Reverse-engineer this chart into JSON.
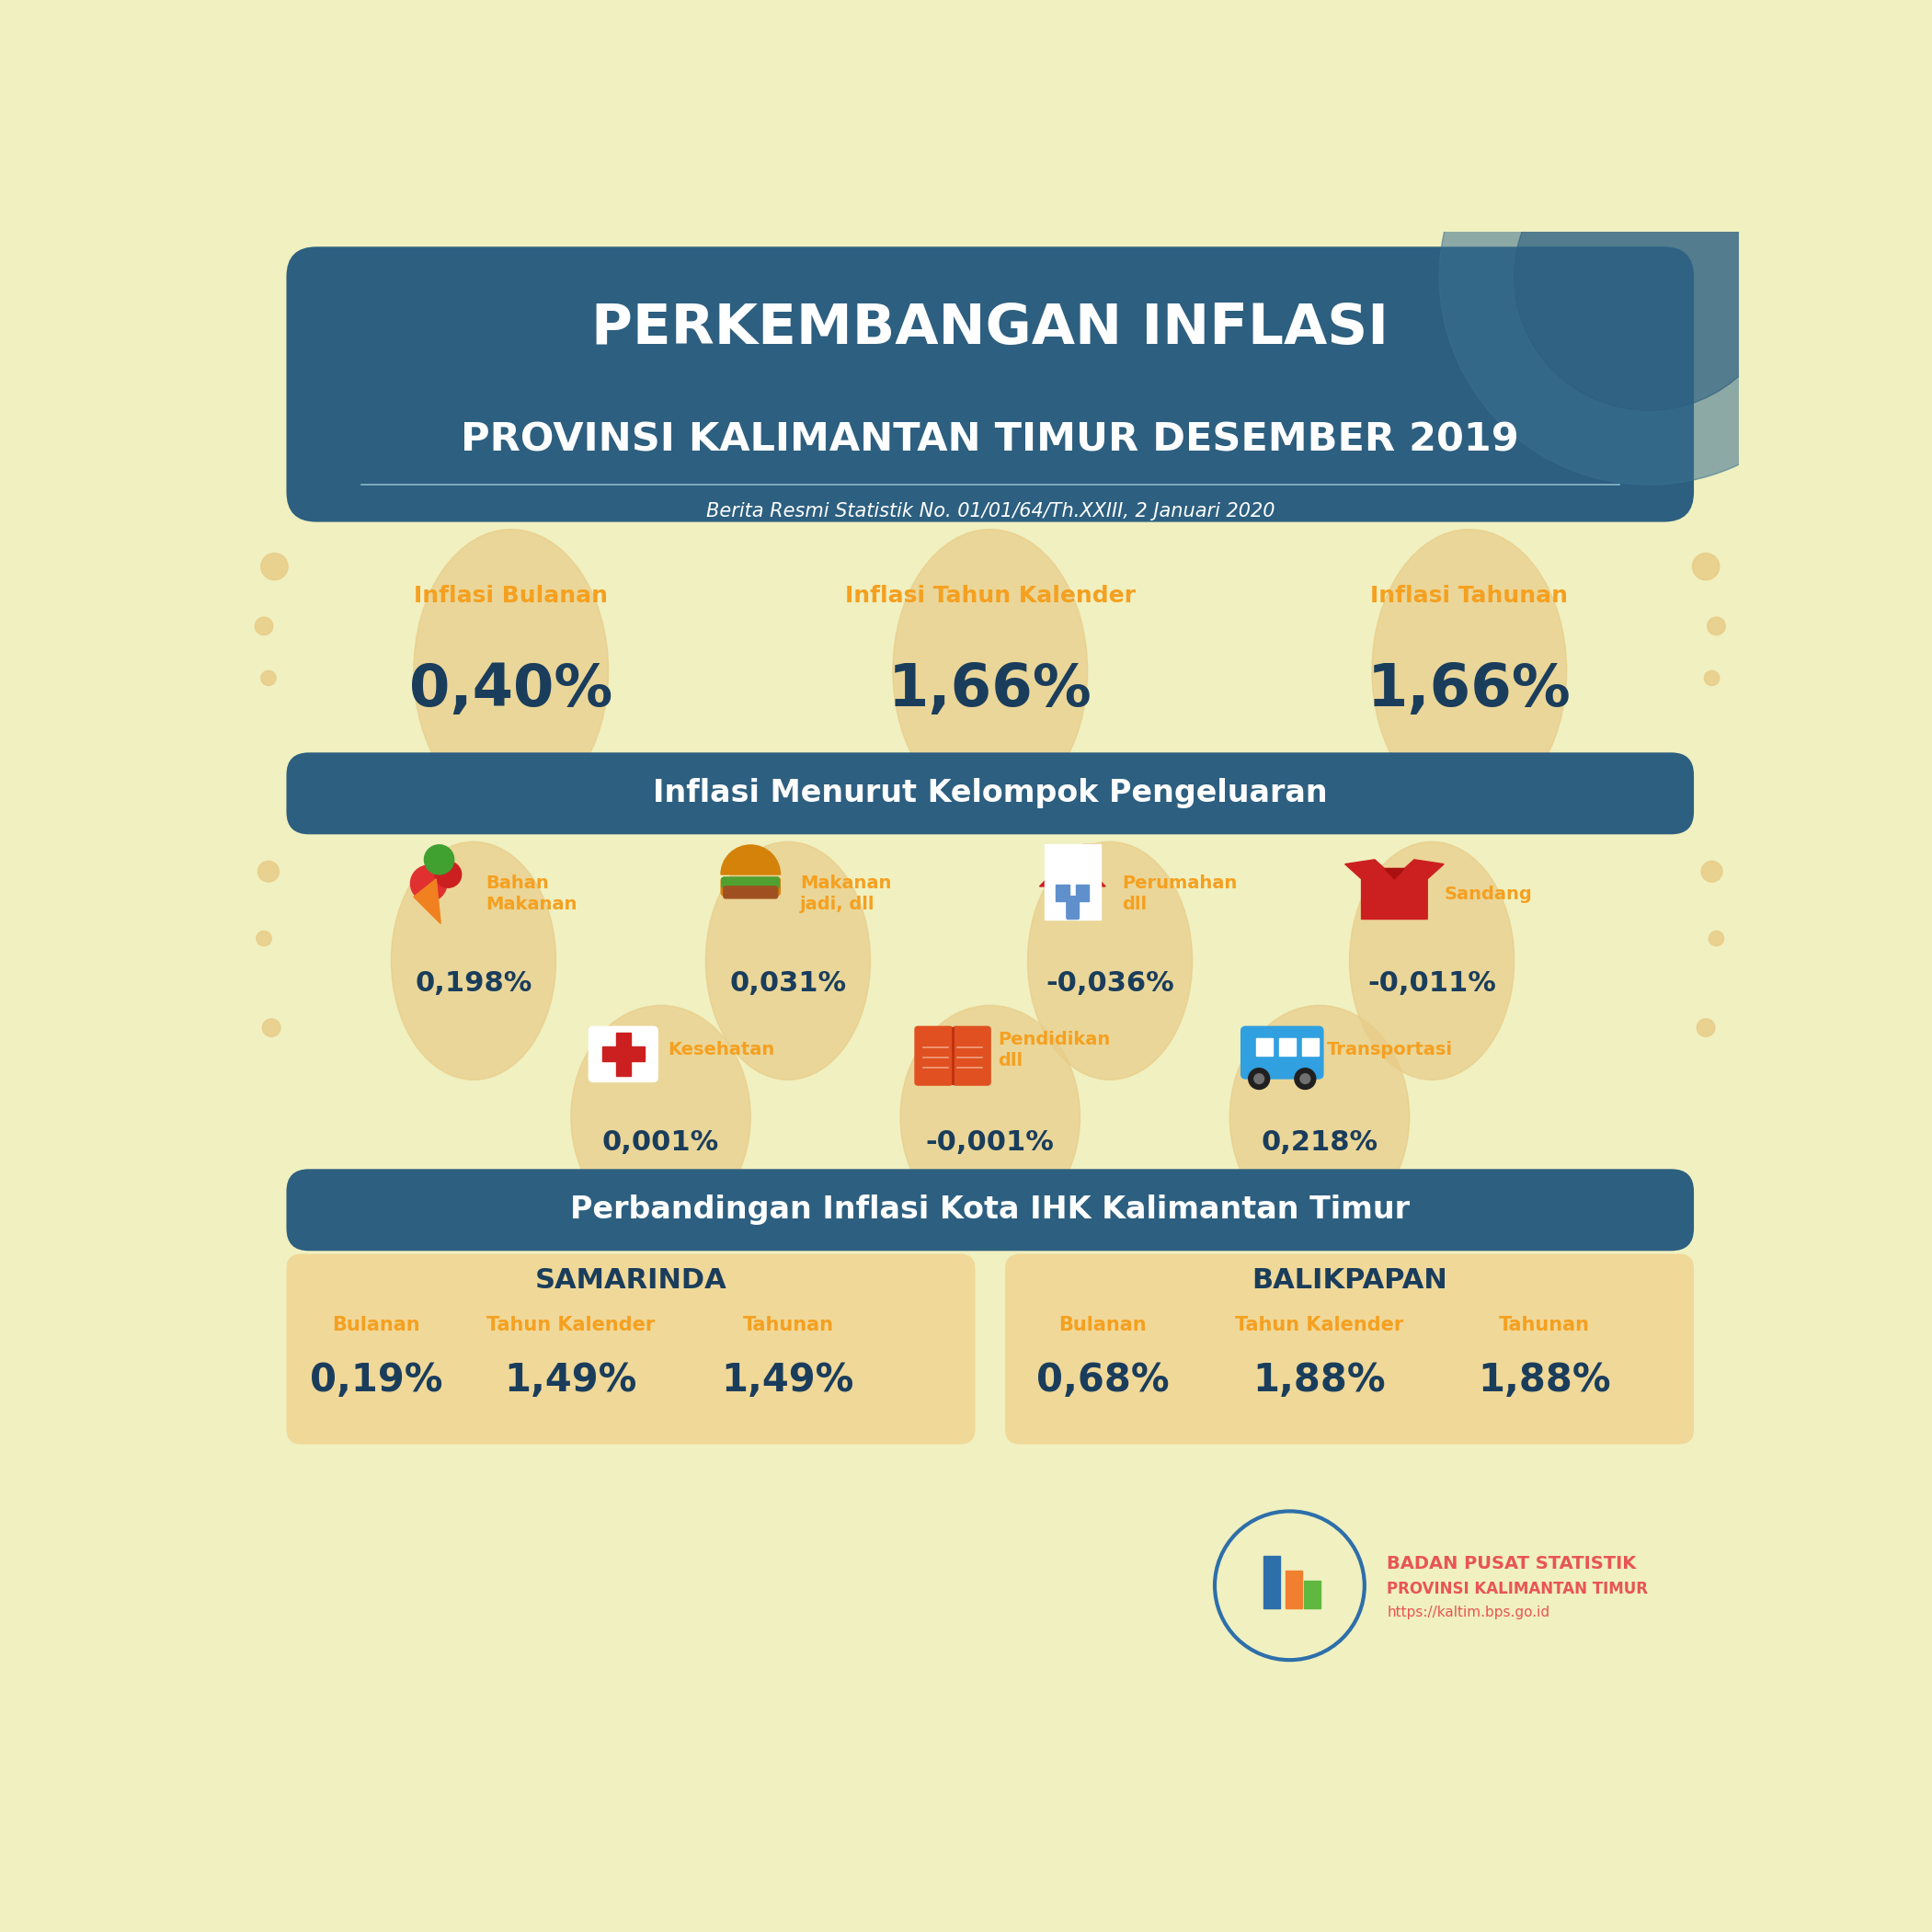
{
  "bg_color": "#f0f0c0",
  "title_line1": "PERKEMBANGAN INFLASI",
  "title_line2": "PROVINSI KALIMANTAN TIMUR DESEMBER 2019",
  "subtitle": "Berita Resmi Statistik No. 01/01/64/Th.XXIII, 2 Januari 2020",
  "header_bg": "#2d5f80",
  "header_text_color": "#ffffff",
  "orange_color": "#f5a020",
  "dark_blue": "#1a3d5c",
  "section_bg": "#2d5f80",
  "inflasi_bulanan_label": "Inflasi Bulanan",
  "inflasi_bulanan_value": "0,40%",
  "inflasi_tahun_label": "Inflasi Tahun Kalender",
  "inflasi_tahun_value": "1,66%",
  "inflasi_tahunan_label": "Inflasi Tahunan",
  "inflasi_tahunan_value": "1,66%",
  "section1_title": "Inflasi Menurut Kelompok Pengeluaran",
  "categories_row1": [
    "Bahan\nMakanan",
    "Makanan\njadi, dll",
    "Perumahan\ndll",
    "Sandang"
  ],
  "values_row1": [
    "0,198%",
    "0,031%",
    "-0,036%",
    "-0,011%"
  ],
  "categories_row2": [
    "Kesehatan",
    "Pendidikan\ndll",
    "Transportasi"
  ],
  "values_row2": [
    "0,001%",
    "-0,001%",
    "0,218%"
  ],
  "section2_title": "Perbandingan Inflasi Kota IHK Kalimantan Timur",
  "samarinda_label": "SAMARINDA",
  "samarinda_bulanan_label": "Bulanan",
  "samarinda_bulanan_value": "0,19%",
  "samarinda_tahun_label": "Tahun Kalender",
  "samarinda_tahun_value": "1,49%",
  "samarinda_tahunan_label": "Tahunan",
  "samarinda_tahunan_value": "1,49%",
  "balikpapan_label": "BALIKPAPAN",
  "balikpapan_bulanan_label": "Bulanan",
  "balikpapan_bulanan_value": "0,68%",
  "balikpapan_tahun_label": "Tahun Kalender",
  "balikpapan_tahun_value": "1,88%",
  "balikpapan_tahunan_label": "Tahunan",
  "balikpapan_tahunan_value": "1,88%",
  "bps_name": "BADAN PUSAT STATISTIK",
  "bps_province": "PROVINSI KALIMANTAN TIMUR",
  "bps_url": "https://kaltim.bps.go.id",
  "bps_red": "#e85555",
  "bps_blue": "#2d6faa",
  "bps_orange": "#f08030",
  "bps_green": "#60b840",
  "tan_color": "#e8cc88",
  "section2_box_color": "#f0d898"
}
